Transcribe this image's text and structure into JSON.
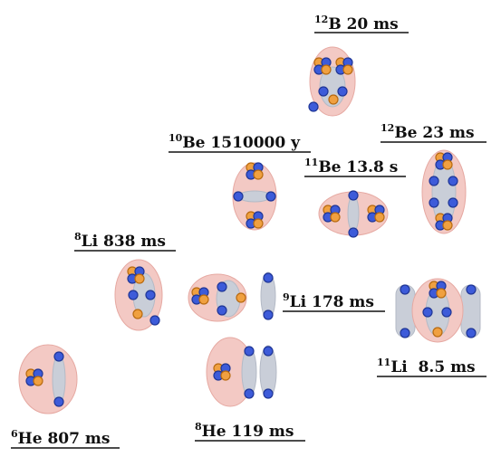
{
  "colors": {
    "halo": "#f3c9c4",
    "halo_stroke": "#e6a9a2",
    "core": "#c9ced8",
    "core_stroke": "#b4bac6",
    "neutron": "#3d5bd9",
    "neutron_dark": "#1f3696",
    "proton": "#f0a040",
    "proton_dark": "#b86a10"
  },
  "nuclei": [
    {
      "id": "b12",
      "mass": "12",
      "symbol": "B",
      "halflife": " 20 ms"
    },
    {
      "id": "be10",
      "mass": "10",
      "symbol": "Be",
      "halflife": " 1510000 y"
    },
    {
      "id": "be12",
      "mass": "12",
      "symbol": "Be",
      "halflife": " 23 ms"
    },
    {
      "id": "be11",
      "mass": "11",
      "symbol": "Be",
      "halflife": " 13.8 s"
    },
    {
      "id": "li8",
      "mass": "8",
      "symbol": "Li",
      "halflife": " 838 ms"
    },
    {
      "id": "li9",
      "mass": "9",
      "symbol": "Li",
      "halflife": " 178 ms"
    },
    {
      "id": "li11",
      "mass": "11",
      "symbol": "Li",
      "halflife": "  8.5 ms"
    },
    {
      "id": "he6",
      "mass": "6",
      "symbol": "He",
      "halflife": " 807 ms"
    },
    {
      "id": "he8",
      "mass": "8",
      "symbol": "He",
      "halflife": " 119 ms"
    }
  ]
}
